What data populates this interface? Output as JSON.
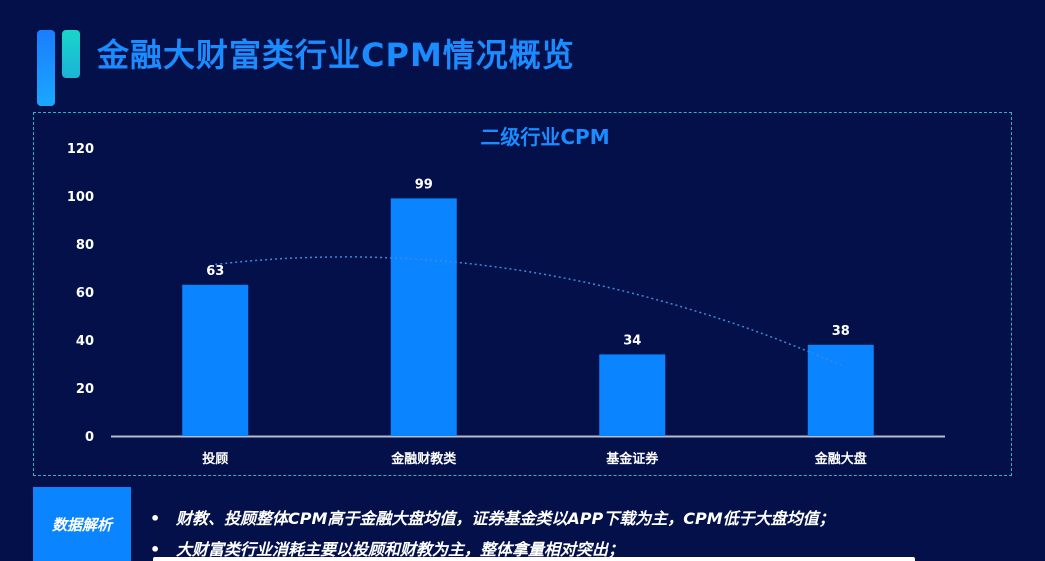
{
  "title": "金融大财富类行业CPM情况概览",
  "analysis": {
    "tag": "数据解析",
    "bullet_symbol": "•",
    "points": [
      "财教、投顾整体CPM高于金融大盘均值，证券基金类以APP下载为主，CPM低于大盘均值；",
      "大财富类行业消耗主要以投顾和财教为主，整体拿量相对突出；"
    ]
  },
  "colors": {
    "background": "#03104a",
    "bar": "#0a84ff",
    "title": "#1a8cff",
    "panel_border": "#2bb7b7"
  },
  "chart_data": {
    "type": "bar",
    "title": "二级行业CPM",
    "categories": [
      "投顾",
      "金融财教类",
      "基金证券",
      "金融大盘"
    ],
    "values": [
      63,
      99,
      34,
      38
    ],
    "data_labels": [
      "63",
      "99",
      "34",
      "38"
    ],
    "ylim": [
      0,
      120
    ],
    "yticks": [
      0,
      20,
      40,
      60,
      80,
      100,
      120
    ],
    "grid": false,
    "trendline": {
      "style": "dotted",
      "type": "polynomial"
    }
  }
}
